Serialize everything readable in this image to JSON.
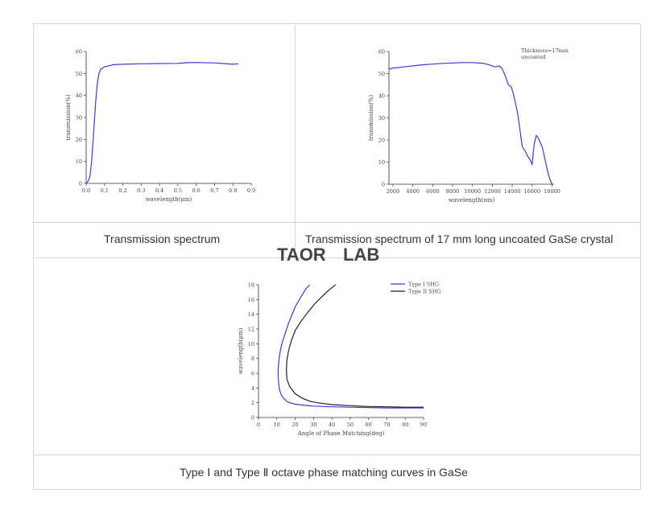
{
  "captions": {
    "cell1": "Transmission spectrum",
    "cell2": "Transmission spectrum of 17 mm long uncoated GaSe crystal",
    "cell3": "Type Ⅰ and Type Ⅱ octave phase matching curves in GaSe"
  },
  "watermark": {
    "text_a": "TAOR",
    "text_b": "LAB",
    "color_a": "#8fa3c7",
    "color_b": "#f0a070"
  },
  "chart_data": [
    {
      "type": "line",
      "title": "",
      "xlabel": "wavelength(μm)",
      "ylabel": "transmission(%)",
      "xlim": [
        0.0,
        0.9
      ],
      "ylim": [
        0,
        60
      ],
      "xticks": [
        "0.0",
        "0.1",
        "0.2",
        "0.3",
        "0.4",
        "0.5",
        "0.6",
        "0.7",
        "0.8",
        "0.9"
      ],
      "yticks": [
        "0",
        "10",
        "20",
        "30",
        "40",
        "50",
        "60"
      ],
      "color": "#3a3ad8",
      "series": [
        {
          "x": [
            0.0,
            0.01,
            0.02,
            0.03,
            0.04,
            0.05,
            0.06,
            0.07,
            0.08,
            0.1,
            0.15,
            0.2,
            0.3,
            0.4,
            0.5,
            0.55,
            0.6,
            0.7,
            0.75,
            0.8,
            0.83
          ],
          "y": [
            0,
            1,
            3,
            10,
            22,
            35,
            45,
            50,
            52,
            53,
            54,
            54.2,
            54.4,
            54.5,
            54.6,
            54.9,
            55,
            54.8,
            54.5,
            54.2,
            54.4
          ]
        }
      ]
    },
    {
      "type": "line",
      "title": "",
      "xlabel": "wavelength(nm)",
      "ylabel": "transmission(%)",
      "xlim": [
        1600,
        18200
      ],
      "ylim": [
        0,
        60
      ],
      "xticks": [
        "2000",
        "4000",
        "6000",
        "8000",
        "10000",
        "12000",
        "14000",
        "16000",
        "18000"
      ],
      "yticks": [
        "0",
        "10",
        "20",
        "30",
        "40",
        "50",
        "60"
      ],
      "annotation": [
        "Thickness=17mm",
        "uncoated"
      ],
      "color": "#3a3ad8",
      "series": [
        {
          "x": [
            1600,
            2000,
            3000,
            4000,
            5000,
            6000,
            7000,
            8000,
            9000,
            10000,
            11000,
            11500,
            12000,
            12300,
            12700,
            13000,
            13300,
            13600,
            13900,
            14100,
            14300,
            14500,
            14700,
            15000,
            15300,
            15500,
            15800,
            16000,
            16200,
            16400,
            16600,
            16800,
            17000,
            17200,
            17400,
            17600,
            17800,
            18000
          ],
          "y": [
            52,
            52.5,
            53,
            53.5,
            54,
            54.3,
            54.6,
            54.8,
            55,
            55,
            54.7,
            54.2,
            53.5,
            53,
            53.5,
            52,
            49,
            45,
            44,
            41,
            37,
            33,
            27,
            17,
            15,
            13,
            11,
            9,
            18,
            22,
            21,
            19,
            17,
            13,
            9,
            5,
            2,
            0
          ]
        }
      ]
    },
    {
      "type": "line",
      "title": "",
      "xlabel": "Angle of Phase Matching(deg)",
      "ylabel": "wavelength(μm)",
      "xlim": [
        0,
        90
      ],
      "ylim": [
        0,
        18
      ],
      "xticks": [
        "0",
        "10",
        "20",
        "30",
        "40",
        "50",
        "60",
        "70",
        "80",
        "90"
      ],
      "yticks": [
        "0",
        "2",
        "4",
        "6",
        "8",
        "10",
        "12",
        "14",
        "16",
        "18"
      ],
      "legend_position": "top-right",
      "series": [
        {
          "name": "Type I SHG",
          "color": "#3a3ad8",
          "x": [
            90,
            80,
            70,
            60,
            50,
            40,
            30,
            25,
            20,
            16,
            14,
            12.5,
            11.5,
            11,
            10.7,
            10.7,
            11,
            11.5,
            12.5,
            14,
            16,
            18,
            20,
            23,
            26,
            28
          ],
          "y": [
            1.3,
            1.3,
            1.3,
            1.35,
            1.4,
            1.45,
            1.55,
            1.65,
            1.8,
            2.1,
            2.5,
            3,
            3.7,
            4.5,
            5.5,
            6.5,
            7.5,
            8.5,
            9.8,
            11,
            12.5,
            13.8,
            15,
            16.3,
            17.5,
            18
          ]
        },
        {
          "name": "Type II SHG",
          "color": "#222222",
          "x": [
            90,
            80,
            70,
            60,
            50,
            40,
            32,
            28,
            24,
            20,
            17,
            15.5,
            15.2,
            15.5,
            16.5,
            18,
            20,
            23,
            27,
            31,
            35,
            38,
            41,
            42
          ],
          "y": [
            1.4,
            1.4,
            1.45,
            1.5,
            1.6,
            1.75,
            2,
            2.2,
            2.6,
            3.2,
            4.2,
            5.2,
            6.5,
            7.8,
            9.2,
            10.5,
            11.8,
            13,
            14.3,
            15.5,
            16.5,
            17.2,
            17.8,
            18
          ]
        }
      ]
    }
  ]
}
